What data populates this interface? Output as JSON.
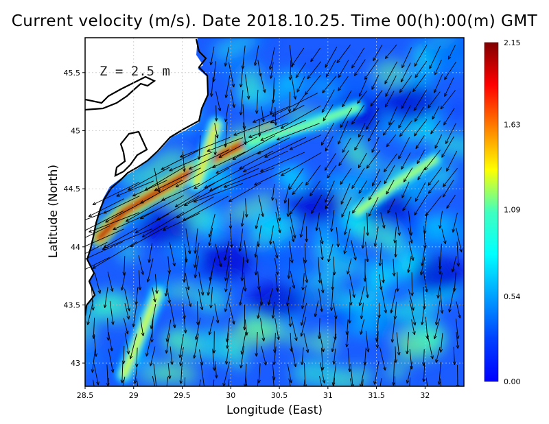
{
  "title": "Current velocity (m/s). Date 2018.10.25. Time 00(h):00(m) GMT",
  "depth_label": "Z  =  2.5  m",
  "colors": {
    "land": "#ffffff",
    "coast": "#000000",
    "water_low": "#0000ff",
    "water_mid": "#00ffff",
    "water_high": "#ffff00",
    "water_max": "#8b0000",
    "grid": "#bbbbbb"
  },
  "chart_data": {
    "type": "heatmap",
    "xlabel": "Longitude (East)",
    "ylabel": "Latitude (North)",
    "xlim": [
      28.5,
      32.4
    ],
    "ylim": [
      42.8,
      45.8
    ],
    "xticks": [
      "28.5",
      "29",
      "29.5",
      "30",
      "30.5",
      "31",
      "31.5",
      "32"
    ],
    "xtick_values": [
      28.5,
      29,
      29.5,
      30,
      30.5,
      31,
      31.5,
      32
    ],
    "yticks": [
      "43",
      "43.5",
      "44",
      "44.5",
      "45",
      "45.5"
    ],
    "ytick_values": [
      43,
      43.5,
      44,
      44.5,
      45,
      45.5
    ],
    "grid": true,
    "colorbar": {
      "min": 0.0,
      "max": 2.15,
      "ticks": [
        "0.00",
        "0.54",
        "1.09",
        "1.63",
        "2.15"
      ],
      "tick_values": [
        0.0,
        0.54,
        1.09,
        1.63,
        2.15
      ],
      "colormap": "jet"
    },
    "series": [
      {
        "kind": "strong-jet",
        "path": [
          [
            28.65,
            44.08
          ],
          [
            28.9,
            44.3
          ],
          [
            29.3,
            44.5
          ],
          [
            29.8,
            44.75
          ],
          [
            30.4,
            45.0
          ]
        ],
        "peak_speed": 2.1
      },
      {
        "kind": "coastal-jet",
        "path": [
          [
            29.65,
            44.55
          ],
          [
            29.75,
            44.8
          ],
          [
            29.85,
            45.05
          ]
        ],
        "peak_speed": 1.4
      },
      {
        "kind": "southern-band",
        "path": [
          [
            28.9,
            42.9
          ],
          [
            29.1,
            43.3
          ],
          [
            29.25,
            43.6
          ]
        ],
        "peak_speed": 1.3
      },
      {
        "kind": "eastern-band",
        "path": [
          [
            31.3,
            44.3
          ],
          [
            31.7,
            44.55
          ],
          [
            32.1,
            44.75
          ]
        ],
        "peak_speed": 1.2
      },
      {
        "kind": "offshore-band",
        "path": [
          [
            30.2,
            44.9
          ],
          [
            30.8,
            45.05
          ],
          [
            31.3,
            45.2
          ]
        ],
        "peak_speed": 1.1
      }
    ]
  }
}
